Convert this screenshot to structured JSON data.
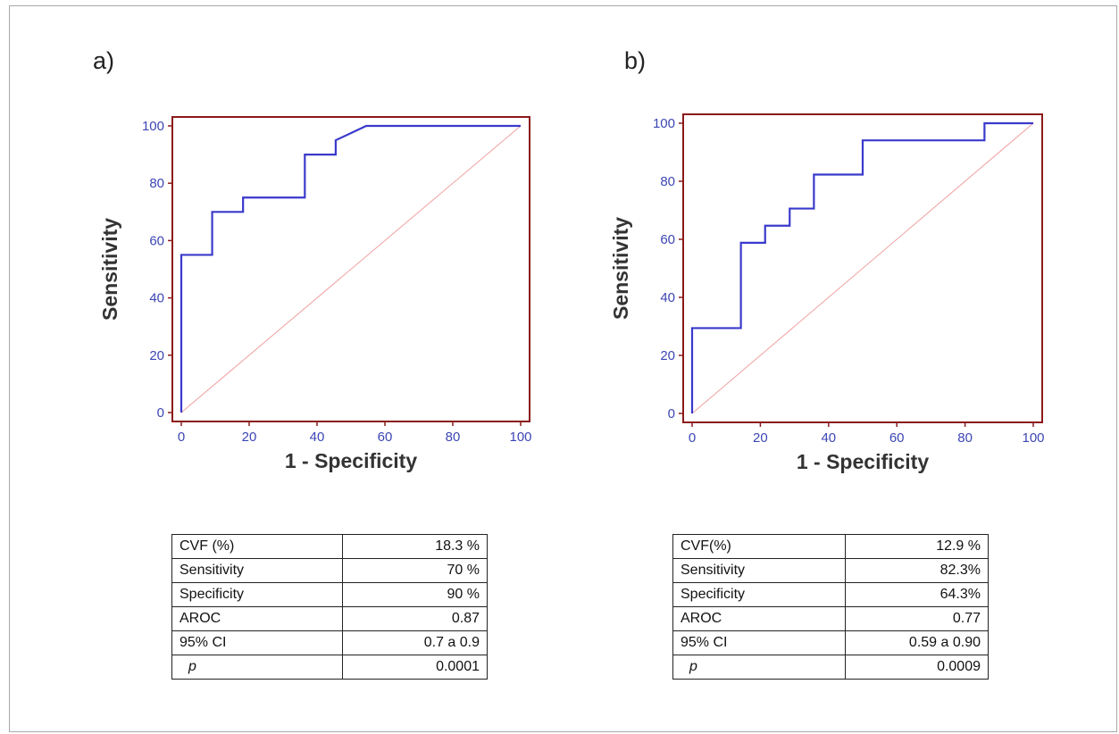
{
  "chart_data": [
    {
      "type": "line",
      "panel_label": "a)",
      "xlabel": "1 - Specificity",
      "ylabel": "Sensitivity",
      "xlim": [
        0,
        100
      ],
      "ylim": [
        0,
        100
      ],
      "xticks": [
        "0",
        "20",
        "40",
        "60",
        "80",
        "100"
      ],
      "yticks": [
        "0",
        "20",
        "40",
        "60",
        "80",
        "100"
      ],
      "series": [
        {
          "x": [
            0,
            0,
            9.1,
            9.1,
            18.2,
            18.2,
            36.4,
            36.4,
            45.5,
            45.5,
            54.5,
            100
          ],
          "y": [
            0,
            55,
            55,
            70,
            70,
            75,
            75,
            90,
            90,
            95,
            100,
            100
          ]
        },
        {
          "x": [
            0,
            100
          ],
          "y": [
            0,
            100
          ]
        }
      ],
      "colors": {
        "curve": "#3a3acc",
        "diagonal": "#f0a0a0",
        "frame": "#8b1a1a"
      },
      "grid": false
    },
    {
      "type": "line",
      "panel_label": "b)",
      "xlabel": "1 - Specificity",
      "ylabel": "Sensitivity",
      "xlim": [
        0,
        100
      ],
      "ylim": [
        0,
        100
      ],
      "xticks": [
        "0",
        "20",
        "40",
        "60",
        "80",
        "100"
      ],
      "yticks": [
        "0",
        "20",
        "40",
        "60",
        "80",
        "100"
      ],
      "series": [
        {
          "x": [
            0,
            0,
            14.3,
            14.3,
            21.4,
            21.4,
            28.6,
            28.6,
            35.7,
            35.7,
            50,
            50,
            85.7,
            85.7,
            100
          ],
          "y": [
            0,
            29.4,
            29.4,
            58.8,
            58.8,
            64.7,
            64.7,
            70.6,
            70.6,
            82.3,
            82.3,
            94.1,
            94.1,
            100,
            100
          ]
        },
        {
          "x": [
            0,
            100
          ],
          "y": [
            0,
            100
          ]
        }
      ],
      "colors": {
        "curve": "#3a3acc",
        "diagonal": "#f0a0a0",
        "frame": "#8b1a1a"
      },
      "grid": false
    }
  ],
  "tables": [
    {
      "rows": [
        {
          "label": "CVF (%)",
          "value": "18.3 %"
        },
        {
          "label": "Sensitivity",
          "value": "70 %"
        },
        {
          "label": "Specificity",
          "value": "90 %"
        },
        {
          "label": "AROC",
          "value": "0.87"
        },
        {
          "label": "95% CI",
          "value": "0.7 a 0.9"
        },
        {
          "label": "p",
          "value": "0.0001"
        }
      ]
    },
    {
      "rows": [
        {
          "label": "CVF(%)",
          "value": "12.9 %"
        },
        {
          "label": "Sensitivity",
          "value": "82.3%"
        },
        {
          "label": "Specificity",
          "value": "64.3%"
        },
        {
          "label": "AROC",
          "value": "0.77"
        },
        {
          "label": "95% CI",
          "value": "0.59 a 0.90"
        },
        {
          "label": "p",
          "value": "0.0009"
        }
      ]
    }
  ]
}
